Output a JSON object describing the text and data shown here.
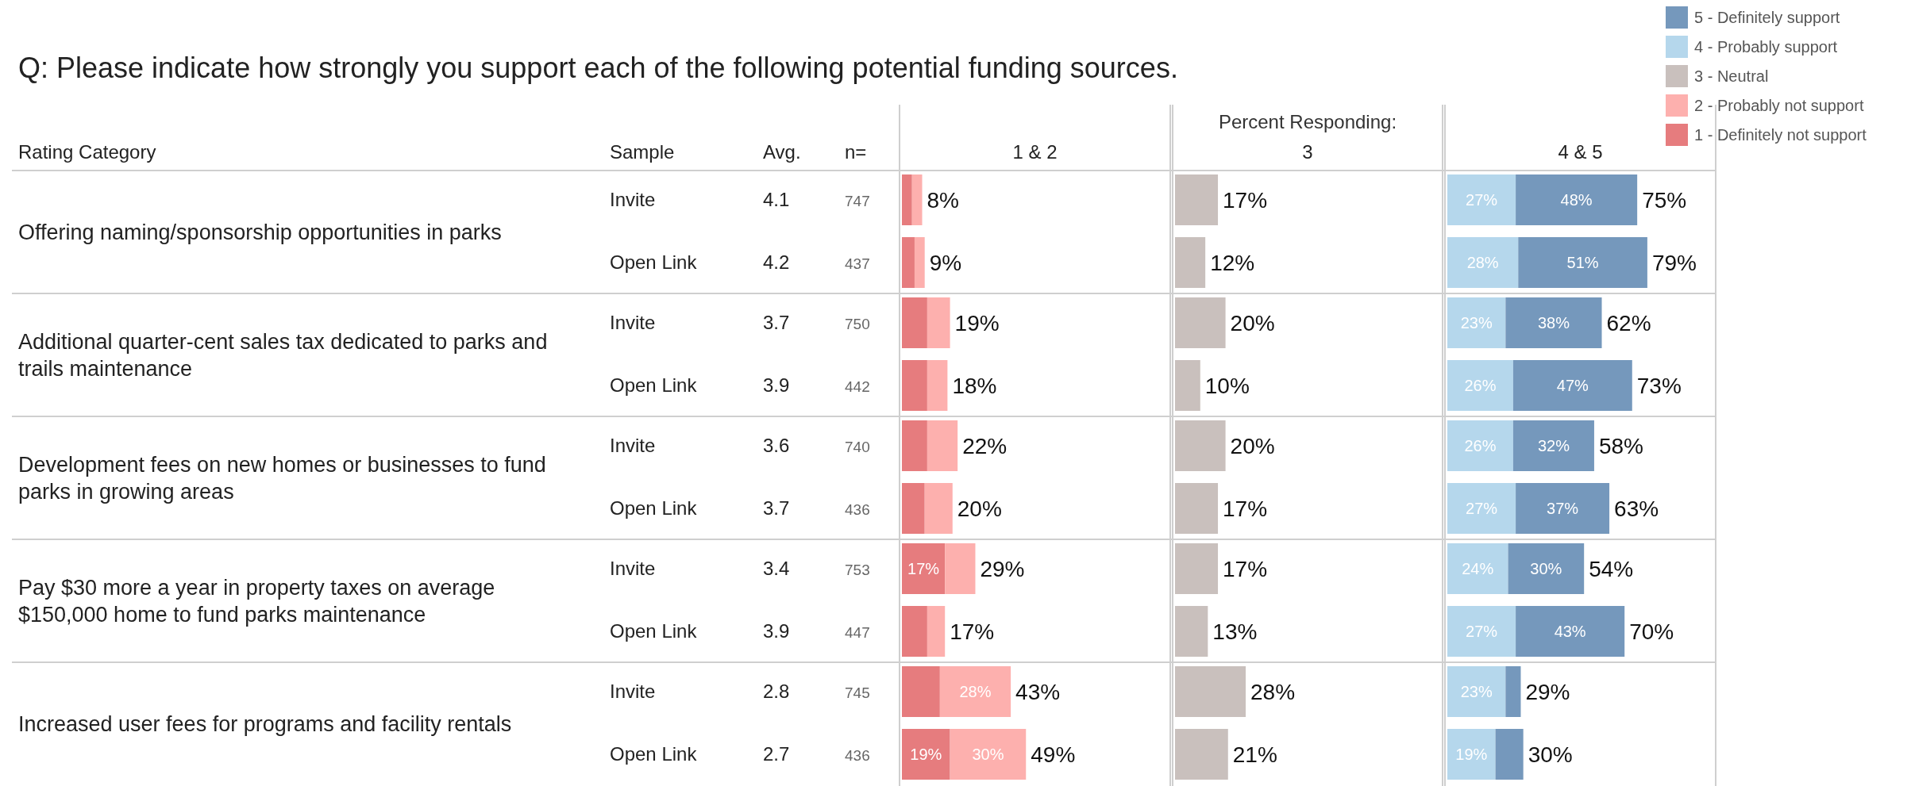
{
  "chart_data": [
    {
      "type": "other",
      "title": "Q: Please indicate how strongly you support each of the following potential funding sources.",
      "xlabel": "Rating Category",
      "ylabel": "Sample",
      "categories": [
        "Invite",
        "Open Link",
        "Invite",
        "Open Link",
        "Invite",
        "Open Link",
        "Invite",
        "Open Link",
        "Invite",
        "Open Link"
      ],
      "series": [
        {
          "name": "Avg.",
          "values": [
            4.1,
            4.2,
            3.7,
            3.9,
            3.6,
            3.7,
            3.4,
            3.9,
            2.8,
            2.7
          ]
        },
        {
          "name": "n=",
          "values": [
            747,
            437,
            750,
            442,
            740,
            436,
            753,
            447,
            745,
            436
          ]
        }
      ],
      "data_labels": true,
      "annotations": [
        "Offering naming/sponsorship opportunities in parks",
        "Additional quarter-cent sales tax dedicated to parks and trails maintenance",
        "Development fees on new homes or businesses to fund parks in growing areas",
        "Pay $30 more a year in property taxes on average $150,000 home to fund parks maintenance",
        "Increased user fees for programs and facility rentals"
      ]
    },
    {
      "type": "bar",
      "orientation": "horizontal",
      "stacked": true,
      "title": "1 & 2",
      "legend": "top right",
      "xlim": [
        0,
        106
      ],
      "categories": [
        null,
        null,
        null,
        null,
        null,
        null,
        null,
        null,
        null,
        null
      ],
      "series": [
        {
          "name": "1 - Definitely not support",
          "color": "#e67c7e",
          "values": [
            4,
            5,
            10,
            10,
            10,
            9,
            17,
            10,
            15,
            19
          ],
          "value_labels": [
            null,
            null,
            null,
            null,
            null,
            null,
            "17%",
            null,
            null,
            "19%"
          ]
        },
        {
          "name": "2 - Probably not support",
          "color": "#fdb0ae",
          "values": [
            4,
            4,
            9,
            8,
            12,
            11,
            12,
            7,
            28,
            30
          ],
          "value_labels": [
            null,
            null,
            null,
            null,
            null,
            null,
            null,
            null,
            "28%",
            "30%"
          ]
        }
      ],
      "totals": [
        "8%",
        "9%",
        "19%",
        "18%",
        "22%",
        "20%",
        "29%",
        "17%",
        "43%",
        "49%"
      ]
    },
    {
      "type": "bar",
      "orientation": "horizontal",
      "stacked": true,
      "title": "3",
      "legend": "top right",
      "xlim": [
        0,
        106
      ],
      "annotations": [
        "Percent Responding:"
      ],
      "categories": [
        null,
        null,
        null,
        null,
        null,
        null,
        null,
        null,
        null,
        null
      ],
      "series": [
        {
          "name": "3 - Neutral",
          "color": "#c9c0bd",
          "values": [
            17,
            12,
            20,
            10,
            20,
            17,
            17,
            13,
            28,
            21
          ],
          "value_labels": [
            "17%",
            "12%",
            "20%",
            "10%",
            "20%",
            "17%",
            "17%",
            "13%",
            "28%",
            "21%"
          ]
        }
      ]
    },
    {
      "type": "bar",
      "orientation": "horizontal",
      "stacked": true,
      "title": "4 & 5",
      "legend": "top right",
      "xlim": [
        0,
        106
      ],
      "categories": [
        null,
        null,
        null,
        null,
        null,
        null,
        null,
        null,
        null,
        null
      ],
      "series": [
        {
          "name": "4 - Probably support",
          "color": "#b5d7ec",
          "values": [
            27,
            28,
            23,
            26,
            26,
            27,
            24,
            27,
            23,
            19
          ],
          "value_labels": [
            "27%",
            "28%",
            "23%",
            "26%",
            "26%",
            "27%",
            "24%",
            "27%",
            "23%",
            "19%"
          ]
        },
        {
          "name": "5 - Definitely support",
          "color": "#7598bc",
          "values": [
            48,
            51,
            38,
            47,
            32,
            37,
            30,
            43,
            6,
            11
          ],
          "value_labels": [
            "48%",
            "51%",
            "38%",
            "47%",
            "32%",
            "37%",
            "30%",
            "43%",
            null,
            null
          ]
        }
      ],
      "totals": [
        "75%",
        "79%",
        "62%",
        "73%",
        "58%",
        "63%",
        "54%",
        "70%",
        "29%",
        "30%"
      ]
    }
  ]
}
